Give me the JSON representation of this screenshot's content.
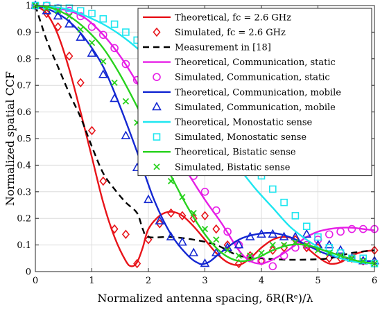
{
  "chart_data": {
    "type": "line",
    "xlabel": "Normalized antenna spacing, δR(Rᵉ)/λ",
    "ylabel": "Normalized spatial CCF",
    "xlim": [
      0,
      6
    ],
    "ylim": [
      0,
      1
    ],
    "xticks": [
      "0",
      "1",
      "2",
      "3",
      "4",
      "5",
      "6"
    ],
    "yticks": [
      "0",
      "0.1",
      "0.2",
      "0.3",
      "0.4",
      "0.5",
      "0.6",
      "0.7",
      "0.8",
      "0.9",
      "1"
    ],
    "grid": true,
    "legend_position": "top-right",
    "series": [
      {
        "name": "Theoretical, fc = 2.6 GHz",
        "style": "solid",
        "marker": "none",
        "color": "#e8141a",
        "x": [
          0,
          0.2,
          0.4,
          0.6,
          0.8,
          1.0,
          1.2,
          1.4,
          1.6,
          1.7,
          1.8,
          1.9,
          2.0,
          2.2,
          2.4,
          2.6,
          2.8,
          3.0,
          3.2,
          3.4,
          3.6,
          3.8,
          4.0,
          4.2,
          4.4,
          4.6,
          4.8,
          5.0,
          5.2,
          5.4,
          5.6,
          5.8,
          6.0
        ],
        "y": [
          1.0,
          0.97,
          0.89,
          0.76,
          0.6,
          0.43,
          0.26,
          0.13,
          0.04,
          0.02,
          0.035,
          0.09,
          0.16,
          0.21,
          0.225,
          0.21,
          0.17,
          0.12,
          0.07,
          0.035,
          0.025,
          0.05,
          0.09,
          0.12,
          0.13,
          0.12,
          0.09,
          0.055,
          0.03,
          0.035,
          0.06,
          0.075,
          0.08
        ]
      },
      {
        "name": "Simulated, fc = 2.6 GHz",
        "style": "none",
        "marker": "diamond",
        "color": "#e8141a",
        "x": [
          0,
          0.2,
          0.4,
          0.6,
          0.8,
          1.0,
          1.2,
          1.4,
          1.6,
          1.8,
          2.0,
          2.2,
          2.4,
          2.6,
          2.8,
          3.0,
          3.2,
          3.4,
          3.6,
          3.8,
          4.0,
          4.2,
          4.4,
          4.6,
          4.8,
          5.0,
          5.2,
          5.4,
          5.6,
          5.8,
          6.0
        ],
        "y": [
          1.0,
          0.97,
          0.92,
          0.81,
          0.71,
          0.53,
          0.34,
          0.16,
          0.14,
          0.03,
          0.12,
          0.18,
          0.22,
          0.21,
          0.2,
          0.21,
          0.16,
          0.1,
          0.03,
          0.06,
          0.04,
          0.08,
          0.09,
          0.12,
          0.09,
          0.09,
          0.05,
          0.05,
          0.05,
          0.04,
          0.08
        ]
      },
      {
        "name": "Measurement in [18]",
        "style": "dashed",
        "marker": "none",
        "color": "#000000",
        "x": [
          0,
          0.2,
          0.4,
          0.6,
          0.8,
          1.0,
          1.2,
          1.4,
          1.6,
          1.8,
          1.9,
          2.0,
          2.4,
          2.8,
          3.2,
          3.6,
          4.0,
          4.4,
          4.8,
          5.2,
          5.6,
          6.0
        ],
        "y": [
          1.0,
          0.87,
          0.77,
          0.67,
          0.58,
          0.47,
          0.37,
          0.31,
          0.26,
          0.22,
          0.16,
          0.13,
          0.13,
          0.12,
          0.1,
          0.06,
          0.05,
          0.045,
          0.045,
          0.05,
          0.07,
          0.08
        ]
      },
      {
        "name": "Theoretical, Communication, static",
        "style": "solid",
        "marker": "none",
        "color": "#e61ee6",
        "x": [
          0,
          0.3,
          0.6,
          0.9,
          1.2,
          1.5,
          1.8,
          2.1,
          2.4,
          2.7,
          3.0,
          3.3,
          3.6,
          3.8,
          4.0,
          4.2,
          4.4,
          4.6,
          4.8,
          5.0,
          5.2,
          5.4,
          5.6,
          5.8,
          6.0
        ],
        "y": [
          1.0,
          0.99,
          0.98,
          0.95,
          0.89,
          0.81,
          0.71,
          0.6,
          0.48,
          0.37,
          0.27,
          0.18,
          0.08,
          0.04,
          0.03,
          0.045,
          0.07,
          0.1,
          0.13,
          0.15,
          0.16,
          0.165,
          0.165,
          0.16,
          0.155
        ]
      },
      {
        "name": "Simulated, Communication, static",
        "style": "none",
        "marker": "circle",
        "color": "#e61ee6",
        "x": [
          0,
          0.2,
          0.4,
          0.6,
          0.8,
          1.0,
          1.2,
          1.4,
          1.6,
          1.8,
          2.0,
          2.2,
          2.4,
          2.6,
          2.8,
          3.0,
          3.2,
          3.4,
          3.6,
          3.8,
          4.0,
          4.2,
          4.4,
          4.6,
          4.8,
          5.0,
          5.2,
          5.4,
          5.6,
          5.8,
          6.0
        ],
        "y": [
          1.0,
          1.0,
          0.99,
          0.98,
          0.96,
          0.92,
          0.89,
          0.84,
          0.78,
          0.72,
          0.63,
          0.55,
          0.48,
          0.41,
          0.36,
          0.3,
          0.23,
          0.15,
          0.1,
          0.05,
          0.04,
          0.02,
          0.06,
          0.09,
          0.1,
          0.12,
          0.14,
          0.15,
          0.16,
          0.16,
          0.16
        ]
      },
      {
        "name": "Theoretical, Communication, mobile",
        "style": "solid",
        "marker": "none",
        "color": "#1428d2",
        "x": [
          0,
          0.3,
          0.6,
          0.9,
          1.2,
          1.5,
          1.8,
          2.1,
          2.4,
          2.7,
          2.9,
          3.0,
          3.1,
          3.3,
          3.6,
          3.9,
          4.2,
          4.5,
          4.8,
          5.1,
          5.4,
          5.7,
          6.0
        ],
        "y": [
          1.0,
          0.98,
          0.94,
          0.87,
          0.77,
          0.62,
          0.45,
          0.27,
          0.14,
          0.06,
          0.03,
          0.03,
          0.04,
          0.075,
          0.12,
          0.14,
          0.145,
          0.13,
          0.1,
          0.07,
          0.05,
          0.04,
          0.04
        ]
      },
      {
        "name": "Simulated, Communication, mobile",
        "style": "none",
        "marker": "triangle",
        "color": "#1428d2",
        "x": [
          0,
          0.2,
          0.4,
          0.6,
          0.8,
          1.0,
          1.2,
          1.4,
          1.6,
          1.8,
          2.0,
          2.2,
          2.4,
          2.6,
          2.8,
          3.0,
          3.2,
          3.4,
          3.6,
          3.8,
          4.0,
          4.2,
          4.4,
          4.6,
          4.8,
          5.0,
          5.2,
          5.4,
          5.6,
          5.8,
          6.0
        ],
        "y": [
          1.0,
          0.98,
          0.96,
          0.93,
          0.88,
          0.82,
          0.74,
          0.65,
          0.51,
          0.39,
          0.27,
          0.19,
          0.13,
          0.11,
          0.07,
          0.03,
          0.07,
          0.09,
          0.1,
          0.13,
          0.14,
          0.14,
          0.13,
          0.13,
          0.14,
          0.1,
          0.1,
          0.08,
          0.05,
          0.04,
          0.04
        ]
      },
      {
        "name": "Theoretical, Monostatic sense",
        "style": "solid",
        "marker": "none",
        "color": "#1ee6f0",
        "x": [
          0,
          0.3,
          0.6,
          0.9,
          1.2,
          1.5,
          1.8,
          2.1,
          2.4,
          2.7,
          3.0,
          3.3,
          3.6,
          3.9,
          4.2,
          4.5,
          4.8,
          5.1,
          5.4,
          5.7,
          6.0
        ],
        "y": [
          1.0,
          0.995,
          0.985,
          0.96,
          0.93,
          0.89,
          0.84,
          0.78,
          0.71,
          0.63,
          0.55,
          0.47,
          0.39,
          0.31,
          0.24,
          0.17,
          0.12,
          0.08,
          0.05,
          0.035,
          0.03
        ]
      },
      {
        "name": "Simulated, Monostatic sense",
        "style": "none",
        "marker": "square",
        "color": "#1ee6f0",
        "x": [
          0,
          0.2,
          0.4,
          0.6,
          0.8,
          1.0,
          1.2,
          1.4,
          1.6,
          1.8,
          2.0,
          2.2,
          2.4,
          2.6,
          2.8,
          3.0,
          3.2,
          3.4,
          3.6,
          3.8,
          4.0,
          4.2,
          4.4,
          4.6,
          4.8,
          5.0,
          5.2,
          5.4,
          5.6,
          5.8,
          6.0
        ],
        "y": [
          1.0,
          1.0,
          0.99,
          0.99,
          0.98,
          0.97,
          0.95,
          0.93,
          0.9,
          0.87,
          0.84,
          0.8,
          0.75,
          0.71,
          0.67,
          0.63,
          0.58,
          0.52,
          0.47,
          0.42,
          0.36,
          0.31,
          0.26,
          0.21,
          0.17,
          0.13,
          0.09,
          0.07,
          0.05,
          0.05,
          0.03
        ]
      },
      {
        "name": "Theoretical, Bistatic sense",
        "style": "solid",
        "marker": "none",
        "color": "#28d21e",
        "x": [
          0,
          0.3,
          0.6,
          0.9,
          1.2,
          1.5,
          1.8,
          2.1,
          2.4,
          2.7,
          3.0,
          3.3,
          3.6,
          3.9,
          4.2,
          4.5,
          4.8,
          5.1,
          5.4,
          5.7,
          6.0
        ],
        "y": [
          1.0,
          0.99,
          0.96,
          0.91,
          0.84,
          0.74,
          0.62,
          0.49,
          0.36,
          0.24,
          0.14,
          0.07,
          0.04,
          0.05,
          0.08,
          0.1,
          0.1,
          0.08,
          0.06,
          0.04,
          0.03
        ]
      },
      {
        "name": "Simulated, Bistatic sense",
        "style": "none",
        "marker": "x",
        "color": "#28d21e",
        "x": [
          0,
          0.2,
          0.4,
          0.6,
          0.8,
          1.0,
          1.2,
          1.4,
          1.6,
          1.8,
          2.0,
          2.2,
          2.4,
          2.6,
          2.8,
          3.0,
          3.2,
          3.4,
          3.6,
          3.8,
          4.0,
          4.2,
          4.4,
          4.6,
          4.8,
          5.0,
          5.2,
          5.4,
          5.6,
          5.8,
          6.0
        ],
        "y": [
          1.0,
          0.99,
          0.98,
          0.96,
          0.91,
          0.86,
          0.79,
          0.71,
          0.64,
          0.56,
          0.47,
          0.41,
          0.34,
          0.28,
          0.22,
          0.16,
          0.12,
          0.08,
          0.06,
          0.06,
          0.07,
          0.1,
          0.1,
          0.11,
          0.1,
          0.08,
          0.07,
          0.06,
          0.05,
          0.04,
          0.03
        ]
      }
    ]
  }
}
